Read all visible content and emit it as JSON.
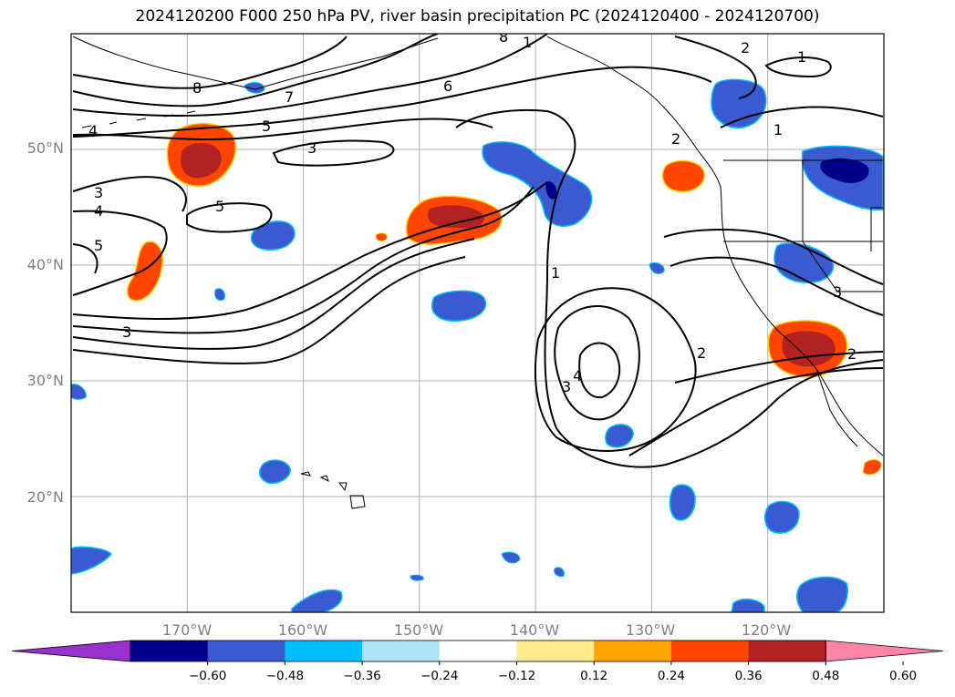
{
  "title": "2024120200 F000 250 hPa PV, river basin precipitation PC (2024120400 - 2024120700)",
  "map": {
    "lon_range": [
      -180,
      -110
    ],
    "lat_range": [
      10,
      60
    ],
    "gridlines": true,
    "lat_labels": [
      "50°N",
      "40°N",
      "30°N",
      "20°N"
    ],
    "lat_values": [
      50,
      40,
      30,
      20
    ],
    "lon_labels": [
      "170°W",
      "160°W",
      "150°W",
      "140°W",
      "130°W",
      "120°W"
    ],
    "lon_values": [
      -170,
      -160,
      -150,
      -140,
      -130,
      -120
    ]
  },
  "colorbar": {
    "ticks": [
      "−0.60",
      "−0.48",
      "−0.36",
      "−0.24",
      "−0.12",
      "0.12",
      "0.24",
      "0.36",
      "0.48",
      "0.60"
    ],
    "colors": [
      "#9932cc",
      "#00008b",
      "#3a5bcf",
      "#00bfff",
      "#afe3fa",
      "#ffffff",
      "#ffe98a",
      "#ffa500",
      "#ff4500",
      "#b22222",
      "#ff85a8"
    ],
    "extend": "both"
  },
  "contour_labels": [
    "8",
    "7",
    "6",
    "5",
    "4",
    "3",
    "3",
    "4",
    "5",
    "5",
    "3",
    "2",
    "1",
    "1",
    "1",
    "2",
    "2",
    "3",
    "4",
    "3",
    "2",
    "1",
    "8"
  ]
}
